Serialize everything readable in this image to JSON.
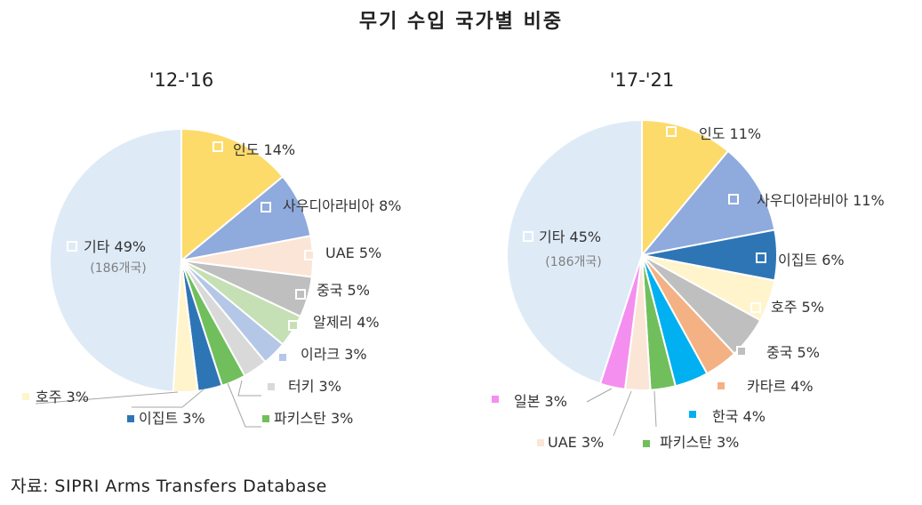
{
  "title": "무기 수입 국가별 비중",
  "source": "자료: SIPRI Arms Transfers Database",
  "chart_data": [
    {
      "type": "pie",
      "title": "'12-'16",
      "slices": [
        {
          "name": "인도",
          "value": 14,
          "label": "인도 14%",
          "color": "#FCDB6B"
        },
        {
          "name": "사우디아라비아",
          "value": 8,
          "label": "사우디아라비아 8%",
          "color": "#8FAADC"
        },
        {
          "name": "UAE",
          "value": 5,
          "label": "UAE 5%",
          "color": "#FBE5D6"
        },
        {
          "name": "중국",
          "value": 5,
          "label": "중국 5%",
          "color": "#BFBFBF"
        },
        {
          "name": "알제리",
          "value": 4,
          "label": "알제리 4%",
          "color": "#C5E0B4"
        },
        {
          "name": "이라크",
          "value": 3,
          "label": "이라크 3%",
          "color": "#B4C7E7"
        },
        {
          "name": "터키",
          "value": 3,
          "label": "터키 3%",
          "color": "#D9D9D9"
        },
        {
          "name": "파키스탄",
          "value": 3,
          "label": "파키스탄 3%",
          "color": "#70BF5C"
        },
        {
          "name": "이집트",
          "value": 3,
          "label": "이집트 3%",
          "color": "#2E75B6"
        },
        {
          "name": "호주",
          "value": 3,
          "label": "호주 3%",
          "color": "#FFF4CC"
        },
        {
          "name": "기타",
          "value": 49,
          "label": "기타 49%",
          "sublabel": "(186개국)",
          "color": "#DEEBF7"
        }
      ]
    },
    {
      "type": "pie",
      "title": "'17-'21",
      "slices": [
        {
          "name": "인도",
          "value": 11,
          "label": "인도 11%",
          "color": "#FCDB6B"
        },
        {
          "name": "사우디아라비아",
          "value": 11,
          "label": "사우디아라비아 11%",
          "color": "#8FAADC"
        },
        {
          "name": "이집트",
          "value": 6,
          "label": "이집트 6%",
          "color": "#2E75B6"
        },
        {
          "name": "호주",
          "value": 5,
          "label": "호주 5%",
          "color": "#FFF4CC"
        },
        {
          "name": "중국",
          "value": 5,
          "label": "중국 5%",
          "color": "#BFBFBF"
        },
        {
          "name": "카타르",
          "value": 4,
          "label": "카타르 4%",
          "color": "#F4B183"
        },
        {
          "name": "한국",
          "value": 4,
          "label": "한국 4%",
          "color": "#00B0F0"
        },
        {
          "name": "파키스탄",
          "value": 3,
          "label": "파키스탄 3%",
          "color": "#70BF5C"
        },
        {
          "name": "UAE",
          "value": 3,
          "label": "UAE 3%",
          "color": "#FBE5D6"
        },
        {
          "name": "일본",
          "value": 3,
          "label": "일본 3%",
          "color": "#F48FF0"
        },
        {
          "name": "기타",
          "value": 45,
          "label": "기타 45%",
          "sublabel": "(186개국)",
          "color": "#DEEBF7"
        }
      ]
    }
  ]
}
